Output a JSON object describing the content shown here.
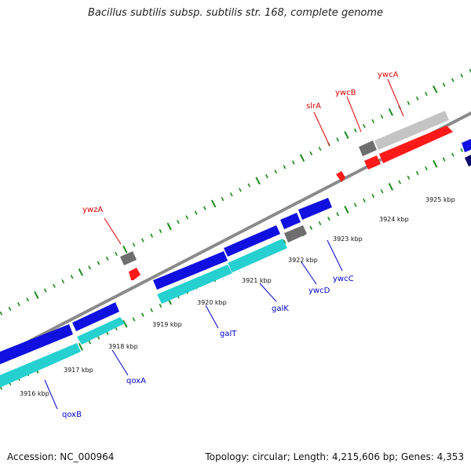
{
  "title": "Bacillus subtilis subsp. subtilis str. 168, complete genome",
  "accession": "Accession: NC_000964",
  "summary": "Topology: circular; Length: 4,215,606 bp; Genes: 4,353",
  "colors": {
    "tick": "#1a8a1a",
    "backbone": "#8a8a8a",
    "forward_gene": "#1010e0",
    "forward_gene_light": "#26d0d0",
    "gray_gene": "#6e6e6e",
    "light_gray_gene": "#c4c4c4",
    "red_gene": "#ff1a1a",
    "label_red": "#dd0000",
    "label_blue": "#0000cc"
  },
  "scale_labels": [
    "3916 kbp",
    "3917 kbp",
    "3918 kbp",
    "3919 kbp",
    "3920 kbp",
    "3921 kbp",
    "3922 kbp",
    "3923 kbp",
    "3924 kbp",
    "3925 kbp"
  ],
  "gene_labels_top": [
    "ywzA",
    "slrA",
    "ywcB",
    "ywcA"
  ],
  "gene_labels_bottom": [
    "qoxB",
    "qoxA",
    "galT",
    "galK",
    "ywcD",
    "ywcC"
  ]
}
